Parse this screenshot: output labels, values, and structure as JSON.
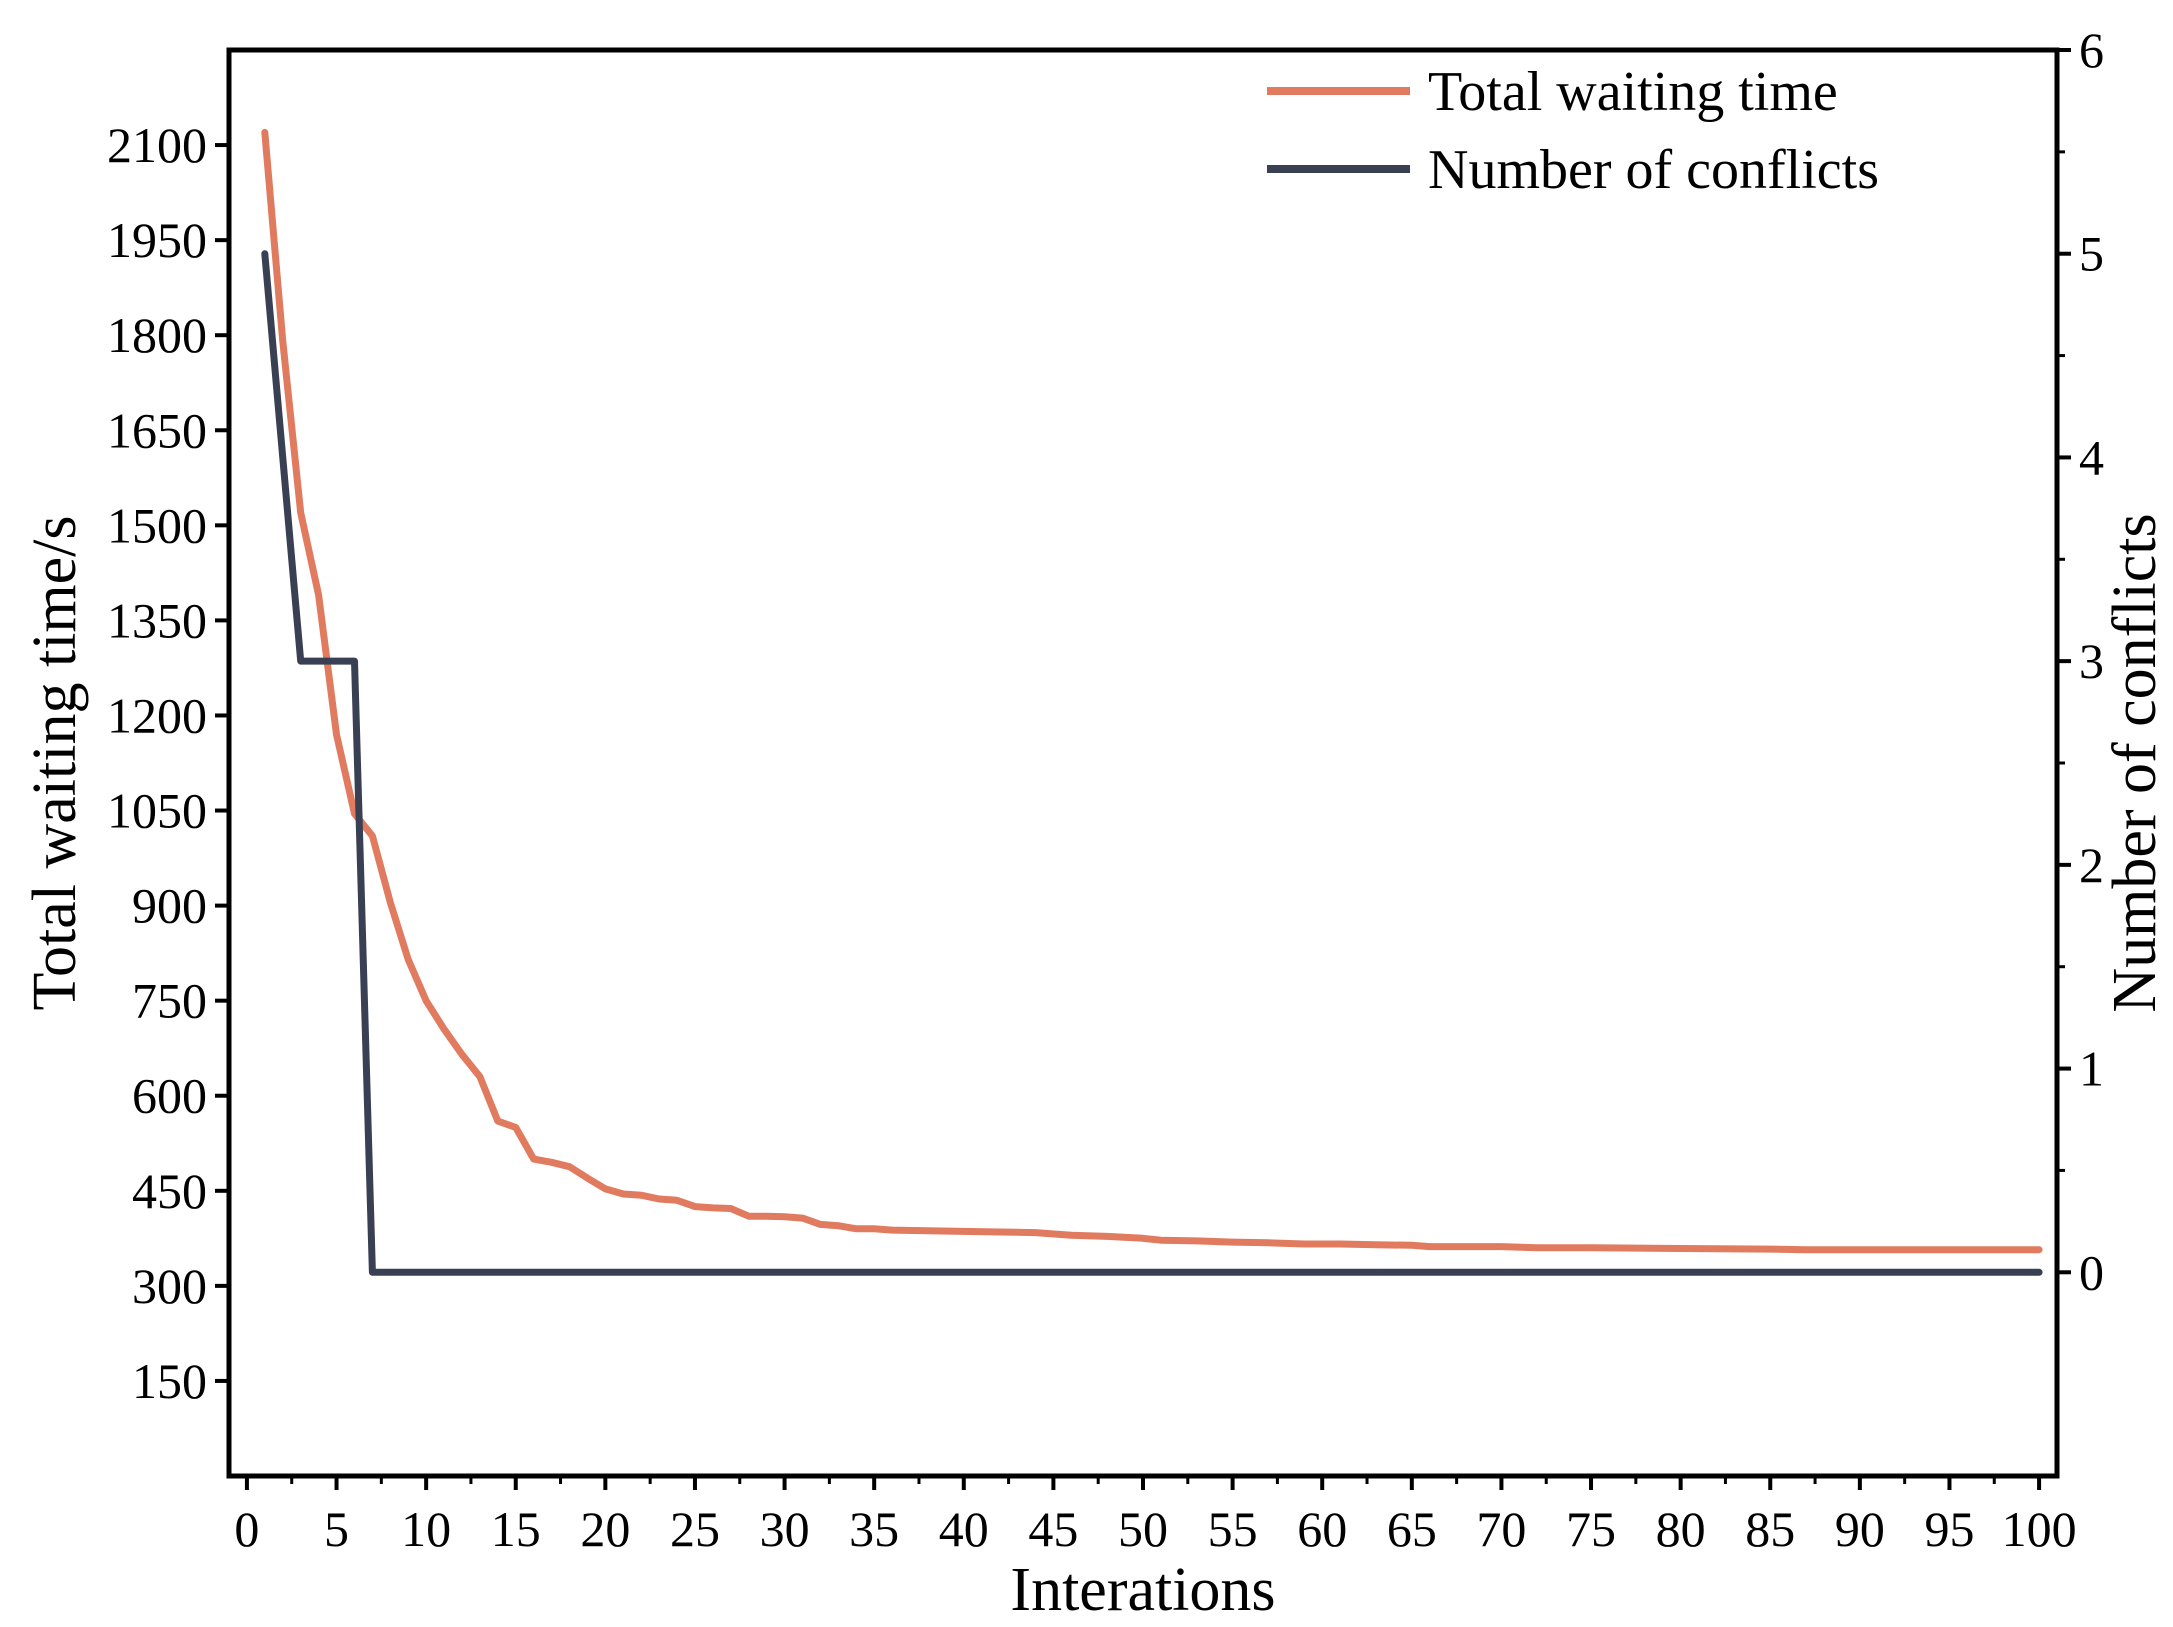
{
  "chart_data": {
    "type": "line",
    "title": "",
    "xlabel": "Interations",
    "ylabel_left": "Total waiting time/s",
    "ylabel_right": "Number of conflicts",
    "xlim": [
      -1,
      101
    ],
    "ylim_left": [
      0,
      2250
    ],
    "ylim_right": [
      -1,
      6
    ],
    "x_ticks": [
      0,
      5,
      10,
      15,
      20,
      25,
      30,
      35,
      40,
      45,
      50,
      55,
      60,
      65,
      70,
      75,
      80,
      85,
      90,
      95,
      100
    ],
    "y_left_ticks": [
      150,
      300,
      450,
      600,
      750,
      900,
      1050,
      1200,
      1350,
      1500,
      1650,
      1800,
      1950,
      2100
    ],
    "y_right_ticks": [
      0,
      1,
      2,
      3,
      4,
      5,
      6
    ],
    "grid": false,
    "legend_position": "top-right",
    "series": [
      {
        "name": "Total waiting time",
        "axis": "left",
        "color": "#E07B5F",
        "x": [
          1,
          2,
          3,
          4,
          5,
          6,
          7,
          8,
          9,
          10,
          11,
          12,
          13,
          14,
          15,
          16,
          17,
          18,
          19,
          20,
          21,
          22,
          23,
          24,
          25,
          26,
          27,
          28,
          29,
          30,
          31,
          32,
          33,
          34,
          35,
          36,
          38,
          40,
          42,
          44,
          46,
          48,
          50,
          51,
          53,
          55,
          57,
          59,
          61,
          63,
          65,
          66,
          70,
          72,
          75,
          80,
          85,
          87,
          90,
          95,
          100
        ],
        "values": [
          2120,
          1790,
          1520,
          1390,
          1170,
          1045,
          1010,
          905,
          815,
          750,
          705,
          665,
          630,
          560,
          550,
          500,
          495,
          488,
          470,
          453,
          445,
          443,
          437,
          435,
          425,
          423,
          422,
          410,
          410,
          409,
          407,
          397,
          395,
          390,
          390,
          388,
          387,
          386,
          385,
          384,
          380,
          378,
          375,
          372,
          371,
          369,
          368,
          366,
          366,
          365,
          364,
          362,
          362,
          360,
          360,
          359,
          358,
          357,
          357,
          357,
          357
        ]
      },
      {
        "name": "Number of conflicts",
        "axis": "right",
        "color": "#3A4054",
        "x": [
          1,
          3,
          6,
          7,
          100
        ],
        "values": [
          5,
          3,
          3,
          0,
          0
        ]
      }
    ]
  }
}
